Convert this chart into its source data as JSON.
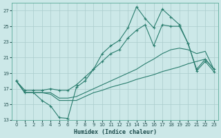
{
  "xlabel": "Humidex (Indice chaleur)",
  "background_color": "#cce8e8",
  "grid_color": "#aacccc",
  "line_color": "#2a7d6e",
  "xlim": [
    -0.5,
    23.5
  ],
  "ylim": [
    13,
    28
  ],
  "yticks": [
    13,
    15,
    17,
    19,
    21,
    23,
    25,
    27
  ],
  "xticks": [
    0,
    1,
    2,
    3,
    4,
    5,
    6,
    7,
    8,
    9,
    10,
    11,
    12,
    13,
    14,
    15,
    16,
    17,
    18,
    19,
    20,
    21,
    22,
    23
  ],
  "line_jagged": [
    18.0,
    16.5,
    16.5,
    15.5,
    14.8,
    13.3,
    13.2,
    17.2,
    18.0,
    19.5,
    21.5,
    22.5,
    23.2,
    24.8,
    27.5,
    26.0,
    24.8,
    27.2,
    26.2,
    25.2,
    22.8,
    19.3,
    20.5,
    19.2
  ],
  "line_upper": [
    18.0,
    16.8,
    16.8,
    16.8,
    17.0,
    16.8,
    16.8,
    17.5,
    18.5,
    19.5,
    20.5,
    21.5,
    22.0,
    23.5,
    24.5,
    25.2,
    22.5,
    25.2,
    25.0,
    25.0,
    22.8,
    19.5,
    20.8,
    19.5
  ],
  "line_lower": [
    18.0,
    16.5,
    16.5,
    16.5,
    16.5,
    15.8,
    15.8,
    16.0,
    16.5,
    17.0,
    17.5,
    18.0,
    18.5,
    19.0,
    19.5,
    20.2,
    20.8,
    21.5,
    22.0,
    22.2,
    22.0,
    21.5,
    21.8,
    19.5
  ],
  "line_bottom": [
    18.0,
    16.5,
    16.5,
    16.5,
    16.3,
    15.5,
    15.5,
    15.5,
    16.0,
    16.5,
    16.8,
    17.2,
    17.5,
    17.8,
    18.2,
    18.5,
    18.8,
    19.2,
    19.5,
    19.8,
    20.2,
    20.5,
    20.8,
    19.5
  ]
}
